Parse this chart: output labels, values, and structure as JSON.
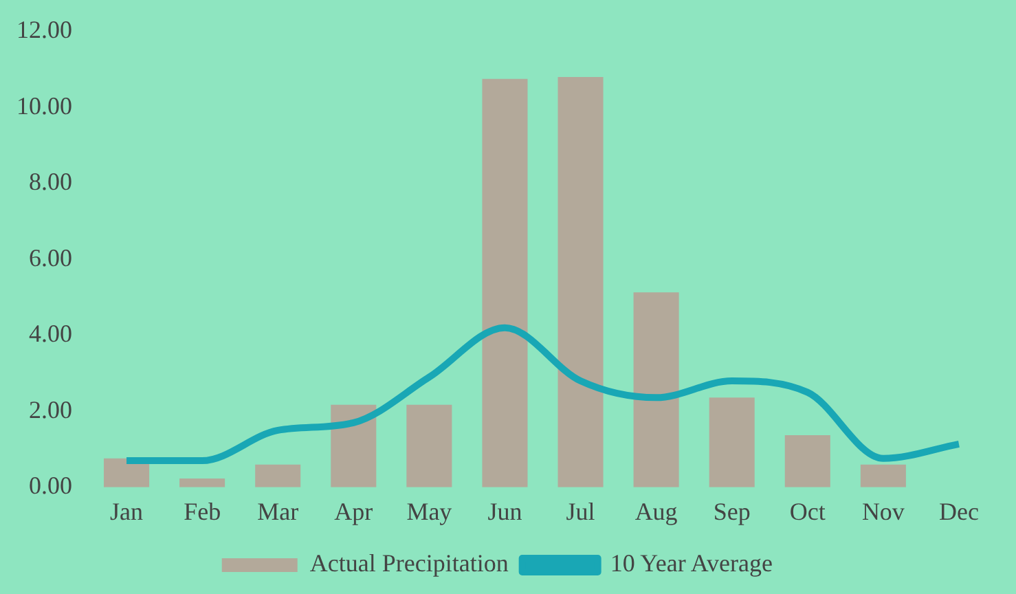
{
  "chart_data": {
    "type": "bar",
    "categories": [
      "Jan",
      "Feb",
      "Mar",
      "Apr",
      "May",
      "Jun",
      "Jul",
      "Aug",
      "Sep",
      "Oct",
      "Nov",
      "Dec"
    ],
    "series": [
      {
        "name": "Actual Precipitation",
        "color": "#b3a99a",
        "values": [
          0.76,
          0.23,
          0.6,
          2.17,
          2.17,
          10.75,
          10.8,
          5.13,
          2.36,
          1.37,
          0.6,
          null
        ]
      },
      {
        "name": "10 Year Average",
        "type": "line",
        "color": "#19a7b5",
        "values": [
          0.7,
          0.7,
          1.5,
          1.7,
          2.9,
          4.2,
          2.8,
          2.36,
          2.8,
          2.5,
          0.76,
          1.14
        ]
      }
    ],
    "ylim": [
      0,
      12
    ],
    "yticks": [
      {
        "value": 0,
        "label": "0.00"
      },
      {
        "value": 2,
        "label": "2.00"
      },
      {
        "value": 4,
        "label": "4.00"
      },
      {
        "value": 6,
        "label": "6.00"
      },
      {
        "value": 8,
        "label": "8.00"
      },
      {
        "value": 10,
        "label": "10.00"
      },
      {
        "value": 12,
        "label": "12.00"
      }
    ],
    "grid": false,
    "legend": "bottom",
    "marker": "none"
  }
}
